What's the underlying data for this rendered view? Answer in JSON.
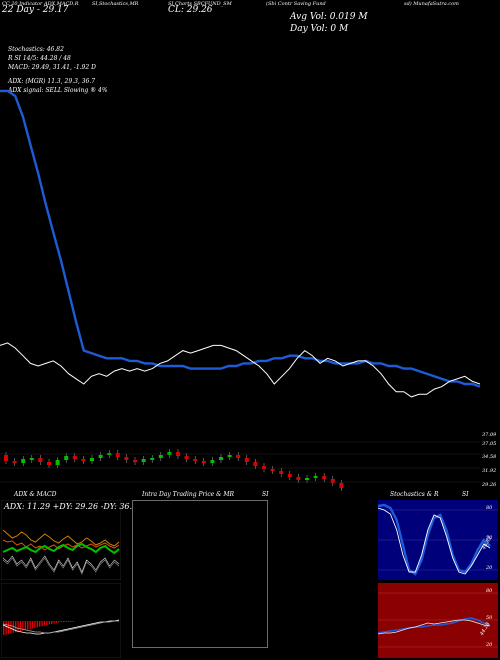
{
  "header": {
    "top_left": "CC 20 Indicator ADX,MACD,R",
    "top_stoch": "SI,Stochastics,MR",
    "top_symbol": "SI Charts SBCFUND_SM",
    "top_name": "(Sbi Contr Saving Fund",
    "top_right": "sd) MunafaSutra.com",
    "date_line": "22 Day - 29.17",
    "close_label": "CL: 29.26",
    "avg_vol": "Avg Vol: 0.019 M",
    "day_vol": "Day Vol: 0  M",
    "stoch_line": "Stochastics: 46.82",
    "rsi_line": "R                SI 14/5: 44.28  / 48",
    "macd_line": "MACD: 29.49, 31.41, -1.92  D",
    "adx_line": "ADX:                            (MGR) 11.3, 29.3, 36.7",
    "adx_signal": "ADX  signal: SELL  Slowing ® 4%"
  },
  "chart_data": {
    "type": "line",
    "series": [
      {
        "values": [
          38.6,
          38.6,
          38.4,
          37.6,
          36.5,
          35.4,
          34.2,
          33.1,
          32.0,
          30.8,
          29.6,
          28.5,
          28.4,
          28.3,
          28.2,
          28.2,
          28.2,
          28.1,
          28.1,
          28.0,
          28.0,
          27.9,
          27.9,
          27.9,
          27.9,
          27.8,
          27.8,
          27.8,
          27.8,
          27.8,
          27.9,
          27.9,
          28.0,
          28.0,
          28.1,
          28.1,
          28.2,
          28.2,
          28.3,
          28.3,
          28.2,
          28.2,
          28.1,
          28.1,
          28.0,
          28.0,
          28.0,
          28.0,
          28.1,
          28.0,
          28.0,
          27.9,
          27.9,
          27.8,
          27.8,
          27.7,
          27.6,
          27.5,
          27.4,
          27.3,
          27.3,
          27.2,
          27.2,
          27.1
        ]
      },
      {
        "values": [
          28.7,
          28.8,
          28.6,
          28.3,
          28.0,
          27.9,
          28.0,
          28.1,
          27.9,
          27.6,
          27.4,
          27.2,
          27.5,
          27.6,
          27.5,
          27.7,
          27.8,
          27.7,
          27.8,
          27.7,
          27.8,
          28.0,
          28.1,
          28.3,
          28.5,
          28.4,
          28.5,
          28.6,
          28.7,
          28.7,
          28.6,
          28.5,
          28.3,
          28.1,
          27.9,
          27.6,
          27.2,
          27.5,
          27.8,
          28.2,
          28.5,
          28.3,
          28.0,
          28.2,
          28.1,
          27.9,
          28.0,
          28.1,
          28.1,
          27.9,
          27.6,
          27.2,
          26.9,
          26.9,
          26.7,
          26.8,
          26.8,
          27.0,
          27.1,
          27.3,
          27.4,
          27.5,
          27.3,
          27.2
        ]
      }
    ],
    "price_levels": [
      "37.09",
      "37.05",
      "34.58",
      "31.92",
      "29.26"
    ],
    "ylim": [
      25.8,
      39.8
    ]
  },
  "panels": {
    "adx_title": "ADX  & MACD",
    "adx_values": "ADX: 11.29 +DY: 29.26  -DY: 36.7",
    "intra_title": "Intra  Day Trading Price  & MR",
    "intra_si": "SI",
    "stoch_title": "Stochastics & R",
    "stoch_si": "SI",
    "stoch_levels": [
      "80",
      "50",
      "20"
    ],
    "stoch_tag": "46.82",
    "rsi_levels": [
      "80",
      "50",
      "20"
    ],
    "rsi_tag": "44.28"
  },
  "colors": {
    "background": "#000000",
    "ema_line": "#1e5bd8",
    "price_line": "#ffffff",
    "stoch_bg": "#00007a",
    "rsi_bg": "#8b0000",
    "plus_di": "#00c000",
    "minus_di": "#e05000",
    "adx": "#d08000",
    "up_candle": "#00c000",
    "down_candle": "#e00000"
  }
}
